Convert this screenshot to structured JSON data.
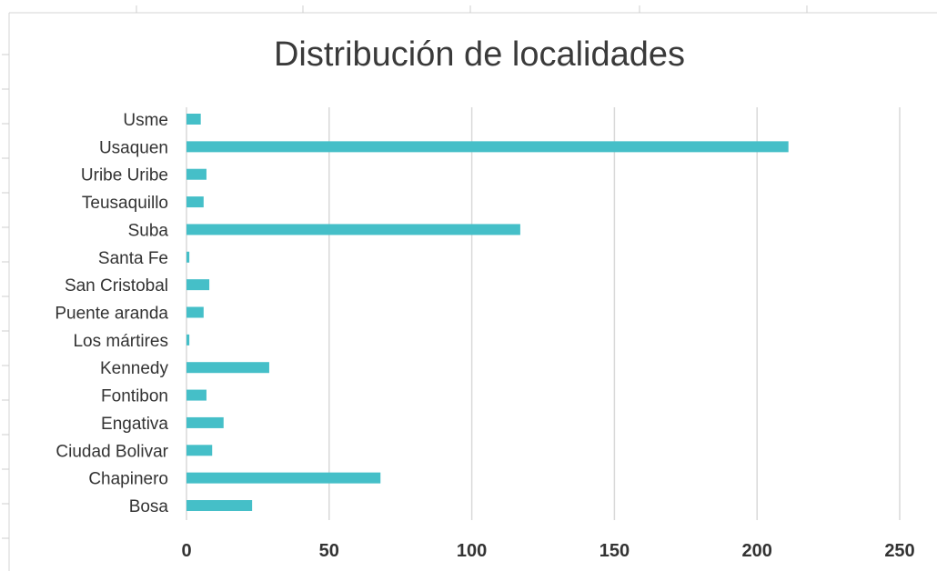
{
  "chart_data": {
    "type": "bar",
    "orientation": "horizontal",
    "title": "Distribución de localidades",
    "xlabel": "",
    "ylabel": "",
    "categories": [
      "Usme",
      "Usaquen",
      "Uribe Uribe",
      "Teusaquillo",
      "Suba",
      "Santa Fe",
      "San Cristobal",
      "Puente aranda",
      "Los mártires",
      "Kennedy",
      "Fontibon",
      "Engativa",
      "Ciudad Bolivar",
      "Chapinero",
      "Bosa"
    ],
    "values": [
      5,
      211,
      7,
      6,
      117,
      1,
      8,
      6,
      1,
      29,
      7,
      13,
      9,
      68,
      23
    ],
    "xlim": [
      0,
      250
    ],
    "xticks": [
      "0",
      "50",
      "100",
      "150",
      "200",
      "250"
    ],
    "grid": "vertical",
    "legend": "none",
    "bar_color": "#45bfc8"
  }
}
